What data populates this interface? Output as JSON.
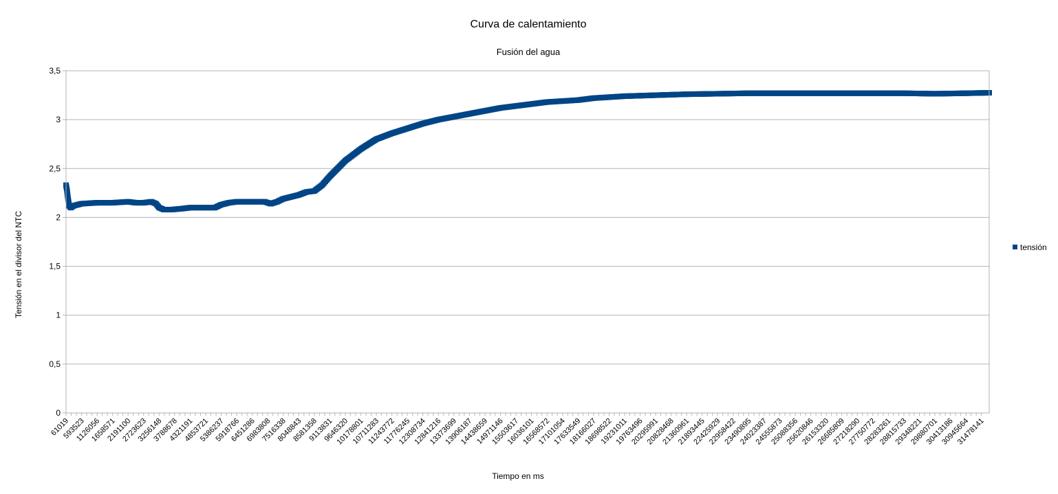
{
  "chart_data": {
    "type": "scatter",
    "title": "Curva de calentamiento",
    "subtitle": "Fusión del agua",
    "xlabel": "Tiempo en ms",
    "ylabel": "Tensión en el divisor del NTC",
    "ylim": [
      0,
      3.5
    ],
    "yticks": [
      "0",
      "0,5",
      "1",
      "1,5",
      "2",
      "2,5",
      "3",
      "3,5"
    ],
    "grid": true,
    "legend_position": "right",
    "x_categories": [
      "61019",
      "593523",
      "1126056",
      "1658571",
      "2191100",
      "2723623",
      "3256148",
      "3788678",
      "4321191",
      "4853721",
      "5386237",
      "5918766",
      "6451286",
      "6983808",
      "7516338",
      "8048843",
      "8581358",
      "9113831",
      "9646320",
      "10178801",
      "10711283",
      "11243772",
      "11776245",
      "12308734",
      "12841216",
      "13373699",
      "13906187",
      "14438659",
      "14971146",
      "15503617",
      "16036101",
      "16568572",
      "17101054",
      "17633549",
      "18166027",
      "18698522",
      "19231011",
      "19763496",
      "20295991",
      "20828468",
      "21360961",
      "21893445",
      "22425929",
      "22958422",
      "23490895",
      "24023387",
      "24555873",
      "25088356",
      "25620846",
      "26153320",
      "26685809",
      "27218290",
      "27750772",
      "28283261",
      "28815733",
      "29348221",
      "29880701",
      "30413186",
      "30945664",
      "31478141"
    ],
    "series": [
      {
        "name": "tensión",
        "color": "#004586",
        "points": [
          [
            0,
            2.33
          ],
          [
            0.06,
            2.28
          ],
          [
            0.12,
            2.2
          ],
          [
            0.2,
            2.12
          ],
          [
            0.3,
            2.1
          ],
          [
            0.5,
            2.12
          ],
          [
            1,
            2.14
          ],
          [
            2,
            2.15
          ],
          [
            3,
            2.15
          ],
          [
            4,
            2.16
          ],
          [
            4.5,
            2.15
          ],
          [
            5,
            2.15
          ],
          [
            5.5,
            2.16
          ],
          [
            5.8,
            2.14
          ],
          [
            6.0,
            2.1
          ],
          [
            6.3,
            2.08
          ],
          [
            6.8,
            2.08
          ],
          [
            7.5,
            2.09
          ],
          [
            8,
            2.1
          ],
          [
            9,
            2.1
          ],
          [
            9.6,
            2.1
          ],
          [
            10,
            2.13
          ],
          [
            10.5,
            2.15
          ],
          [
            11,
            2.16
          ],
          [
            12,
            2.16
          ],
          [
            12.8,
            2.16
          ],
          [
            13.2,
            2.14
          ],
          [
            13.6,
            2.16
          ],
          [
            14,
            2.19
          ],
          [
            14.5,
            2.21
          ],
          [
            15,
            2.23
          ],
          [
            15.5,
            2.26
          ],
          [
            16,
            2.27
          ],
          [
            16.5,
            2.33
          ],
          [
            17,
            2.42
          ],
          [
            17.5,
            2.5
          ],
          [
            18,
            2.58
          ],
          [
            18.5,
            2.64
          ],
          [
            19,
            2.7
          ],
          [
            19.5,
            2.75
          ],
          [
            20,
            2.8
          ],
          [
            21,
            2.86
          ],
          [
            22,
            2.91
          ],
          [
            23,
            2.96
          ],
          [
            24,
            3.0
          ],
          [
            25,
            3.03
          ],
          [
            26,
            3.06
          ],
          [
            27,
            3.09
          ],
          [
            28,
            3.12
          ],
          [
            29,
            3.14
          ],
          [
            30,
            3.16
          ],
          [
            31,
            3.18
          ],
          [
            32,
            3.19
          ],
          [
            33,
            3.2
          ],
          [
            34,
            3.22
          ],
          [
            35,
            3.23
          ],
          [
            36,
            3.24
          ],
          [
            37,
            3.245
          ],
          [
            38,
            3.25
          ],
          [
            39,
            3.255
          ],
          [
            40,
            3.26
          ],
          [
            42,
            3.265
          ],
          [
            44,
            3.27
          ],
          [
            46,
            3.27
          ],
          [
            48,
            3.27
          ],
          [
            50,
            3.27
          ],
          [
            52,
            3.27
          ],
          [
            54,
            3.27
          ],
          [
            56,
            3.265
          ],
          [
            58,
            3.27
          ],
          [
            59.5,
            3.275
          ]
        ]
      }
    ]
  }
}
